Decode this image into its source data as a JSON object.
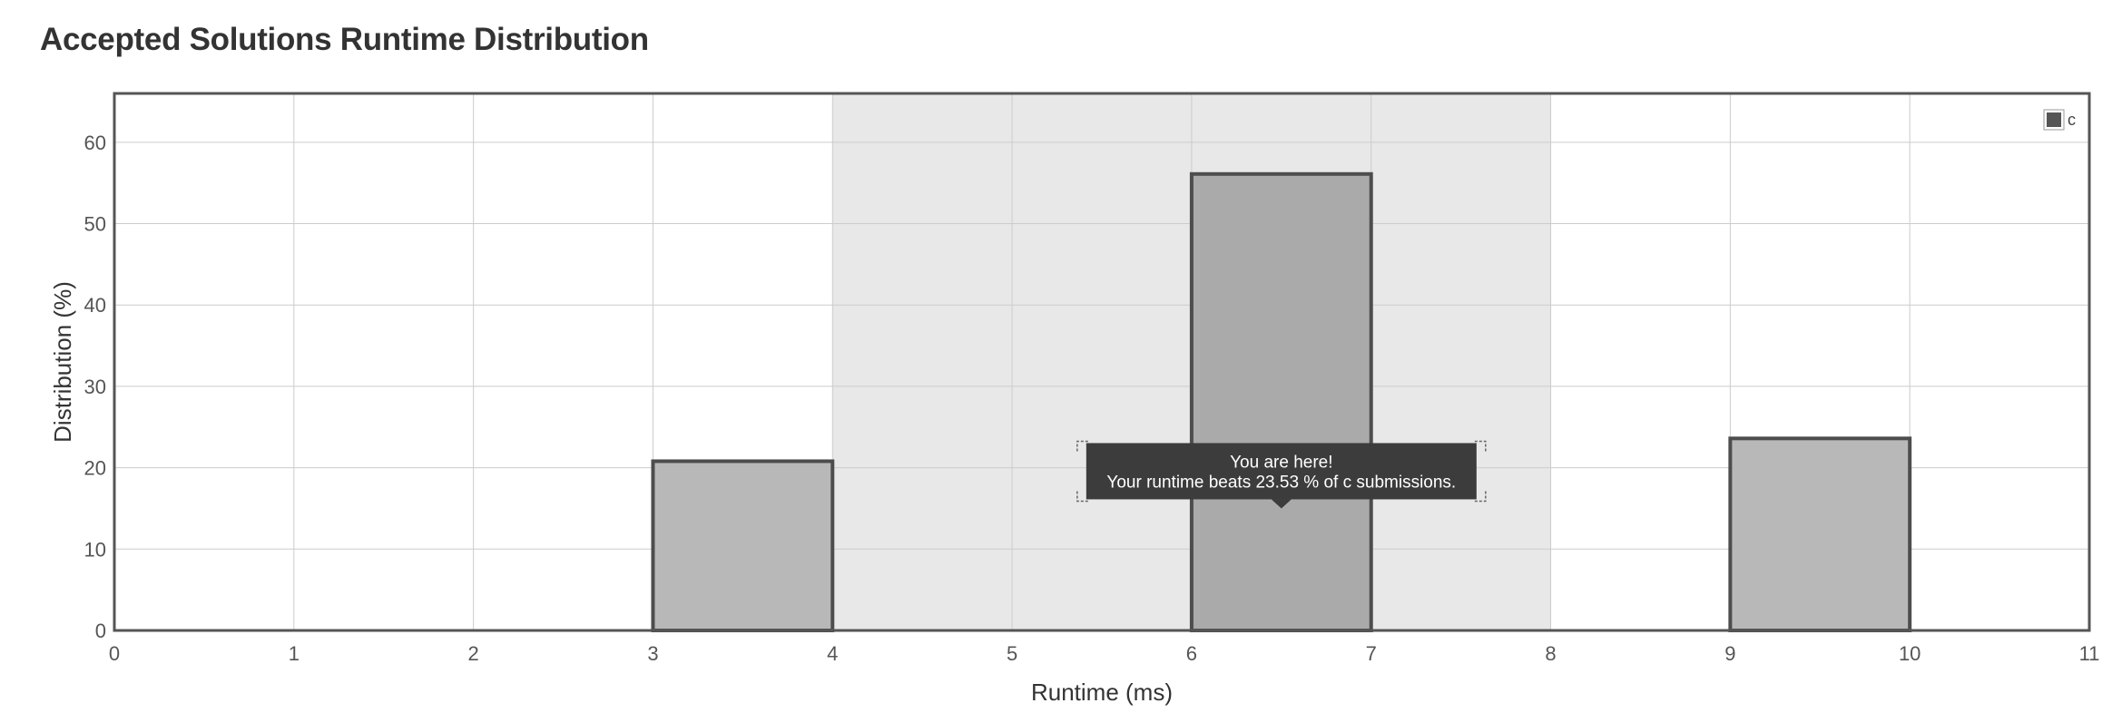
{
  "page": {
    "title": "Accepted Solutions Runtime Distribution"
  },
  "chart_data": {
    "type": "bar",
    "title": "Accepted Solutions Runtime Distribution",
    "xlabel": "Runtime (ms)",
    "ylabel": "Distribution (%)",
    "xlim": [
      0,
      11
    ],
    "ylim": [
      0,
      66
    ],
    "x_ticks": [
      0,
      1,
      2,
      3,
      4,
      5,
      6,
      7,
      8,
      9,
      10,
      11
    ],
    "y_ticks": [
      0,
      10,
      20,
      30,
      40,
      50,
      60
    ],
    "grid": true,
    "legend_position": "top-right",
    "highlight_range": [
      4,
      8
    ],
    "series": [
      {
        "name": "c",
        "bars": [
          {
            "x_start": 3,
            "x_end": 4,
            "value": 20.8,
            "highlighted": false
          },
          {
            "x_start": 6,
            "x_end": 7,
            "value": 56.1,
            "highlighted": true
          },
          {
            "x_start": 9,
            "x_end": 10,
            "value": 23.6,
            "highlighted": false
          }
        ]
      }
    ],
    "tooltip": {
      "line1": "You are here!",
      "line2": "Your runtime beats 23.53 % of c submissions.",
      "anchor_x": 6.5,
      "anchor_y": 15
    },
    "colors": {
      "bar_fill": "#b8b8b8",
      "bar_fill_highlight": "#aaaaaa",
      "bar_stroke": "#4d4d4d",
      "highlight_band": "#e8e8e8",
      "grid": "#cccccc",
      "plot_border": "#555555",
      "legend_swatch": "#555555",
      "tooltip_bg": "#3c3c3c"
    }
  }
}
